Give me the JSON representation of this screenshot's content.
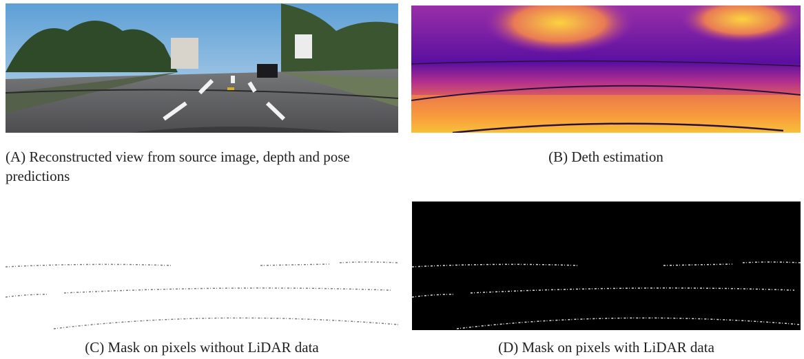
{
  "figure": {
    "panels": [
      {
        "caption": "(A) Reconstructed view from source image, depth and pose predictions"
      },
      {
        "caption": "(B) Deth estimation"
      },
      {
        "caption": "(C) Mask on pixels without LiDAR data"
      },
      {
        "caption": "(D) Mask on pixels with LiDAR data"
      }
    ]
  }
}
